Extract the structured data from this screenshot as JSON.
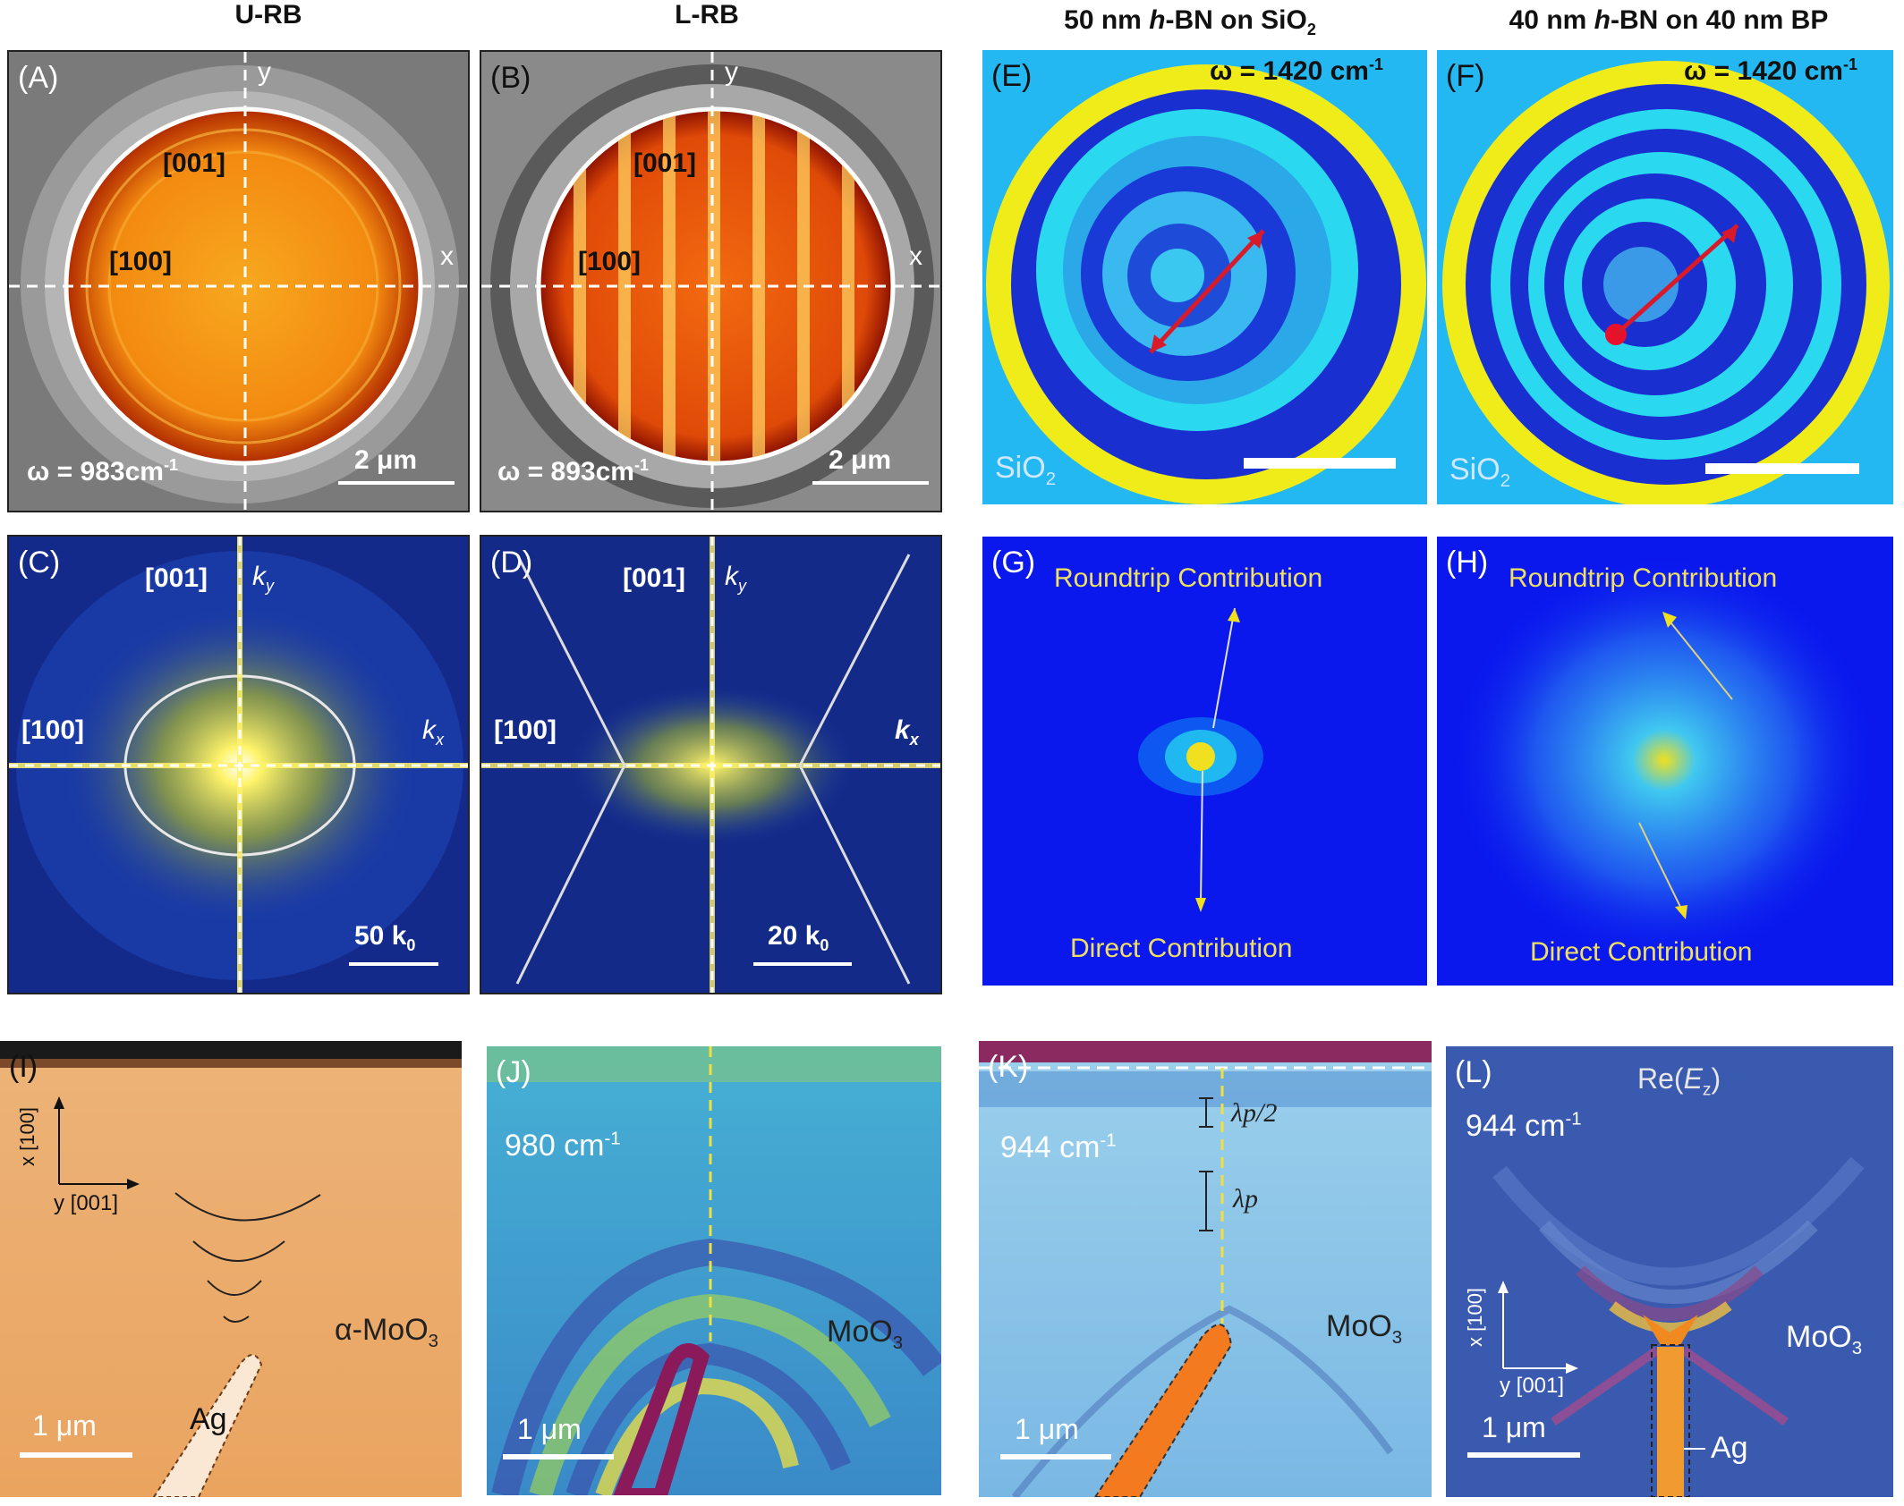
{
  "titles": {
    "u_rb": "U-RB",
    "l_rb": "L-RB",
    "e_title": "50 nm h-BN on SiO2",
    "f_title": "40 nm h-BN on 40 nm BP"
  },
  "panels": {
    "A": {
      "label": "(A)",
      "y": "y",
      "x": "x",
      "dir001": "[001]",
      "dir100": "[100]",
      "omega": "ω = 983cm",
      "omega_sup": "-1",
      "scale": "2 μm"
    },
    "B": {
      "label": "(B)",
      "y": "y",
      "x": "x",
      "dir001": "[001]",
      "dir100": "[100]",
      "omega": "ω = 893cm",
      "omega_sup": "-1",
      "scale": "2 μm"
    },
    "C": {
      "label": "(C)",
      "dir001": "[001]",
      "dir100": "[100]",
      "ky": "k",
      "ky_sub": "y",
      "kx": "k",
      "kx_sub": "x",
      "scale": "50 k",
      "scale_sub": "0"
    },
    "D": {
      "label": "(D)",
      "dir001": "[001]",
      "dir100": "[100]",
      "ky": "k",
      "ky_sub": "y",
      "kx": "k",
      "kx_sub": "x",
      "scale": "20 k",
      "scale_sub": "0"
    },
    "E": {
      "label": "(E)",
      "omega": "ω = 1420 cm",
      "omega_sup": "-1",
      "substrate": "SiO",
      "substrate_sub": "2"
    },
    "F": {
      "label": "(F)",
      "omega": "ω = 1420 cm",
      "omega_sup": "-1",
      "substrate": "SiO",
      "substrate_sub": "2"
    },
    "G": {
      "label": "(G)",
      "roundtrip": "Roundtrip Contribution",
      "direct": "Direct Contribution"
    },
    "H": {
      "label": "(H)",
      "roundtrip": "Roundtrip Contribution",
      "direct": "Direct Contribution"
    },
    "I": {
      "label": "(I)",
      "x_axis": "x [100]",
      "y_axis": "y [001]",
      "material": "α-MoO",
      "material_sub": "3",
      "ag": "Ag",
      "scale": "1 μm"
    },
    "J": {
      "label": "(J)",
      "freq": "980 cm",
      "freq_sup": "-1",
      "material": "MoO",
      "material_sub": "3",
      "scale": "1 μm"
    },
    "K": {
      "label": "(K)",
      "freq": "944 cm",
      "freq_sup": "-1",
      "half_lambda": "λp/2",
      "lambda": "λp",
      "material": "MoO",
      "material_sub": "3",
      "scale": "1 μm"
    },
    "L": {
      "label": "(L)",
      "field": "Re(Ez)",
      "freq": "944 cm",
      "freq_sup": "-1",
      "x_axis": "x [100]",
      "y_axis": "y [001]",
      "material": "MoO",
      "material_sub": "3",
      "ag": "Ag",
      "scale": "1 μm"
    }
  }
}
